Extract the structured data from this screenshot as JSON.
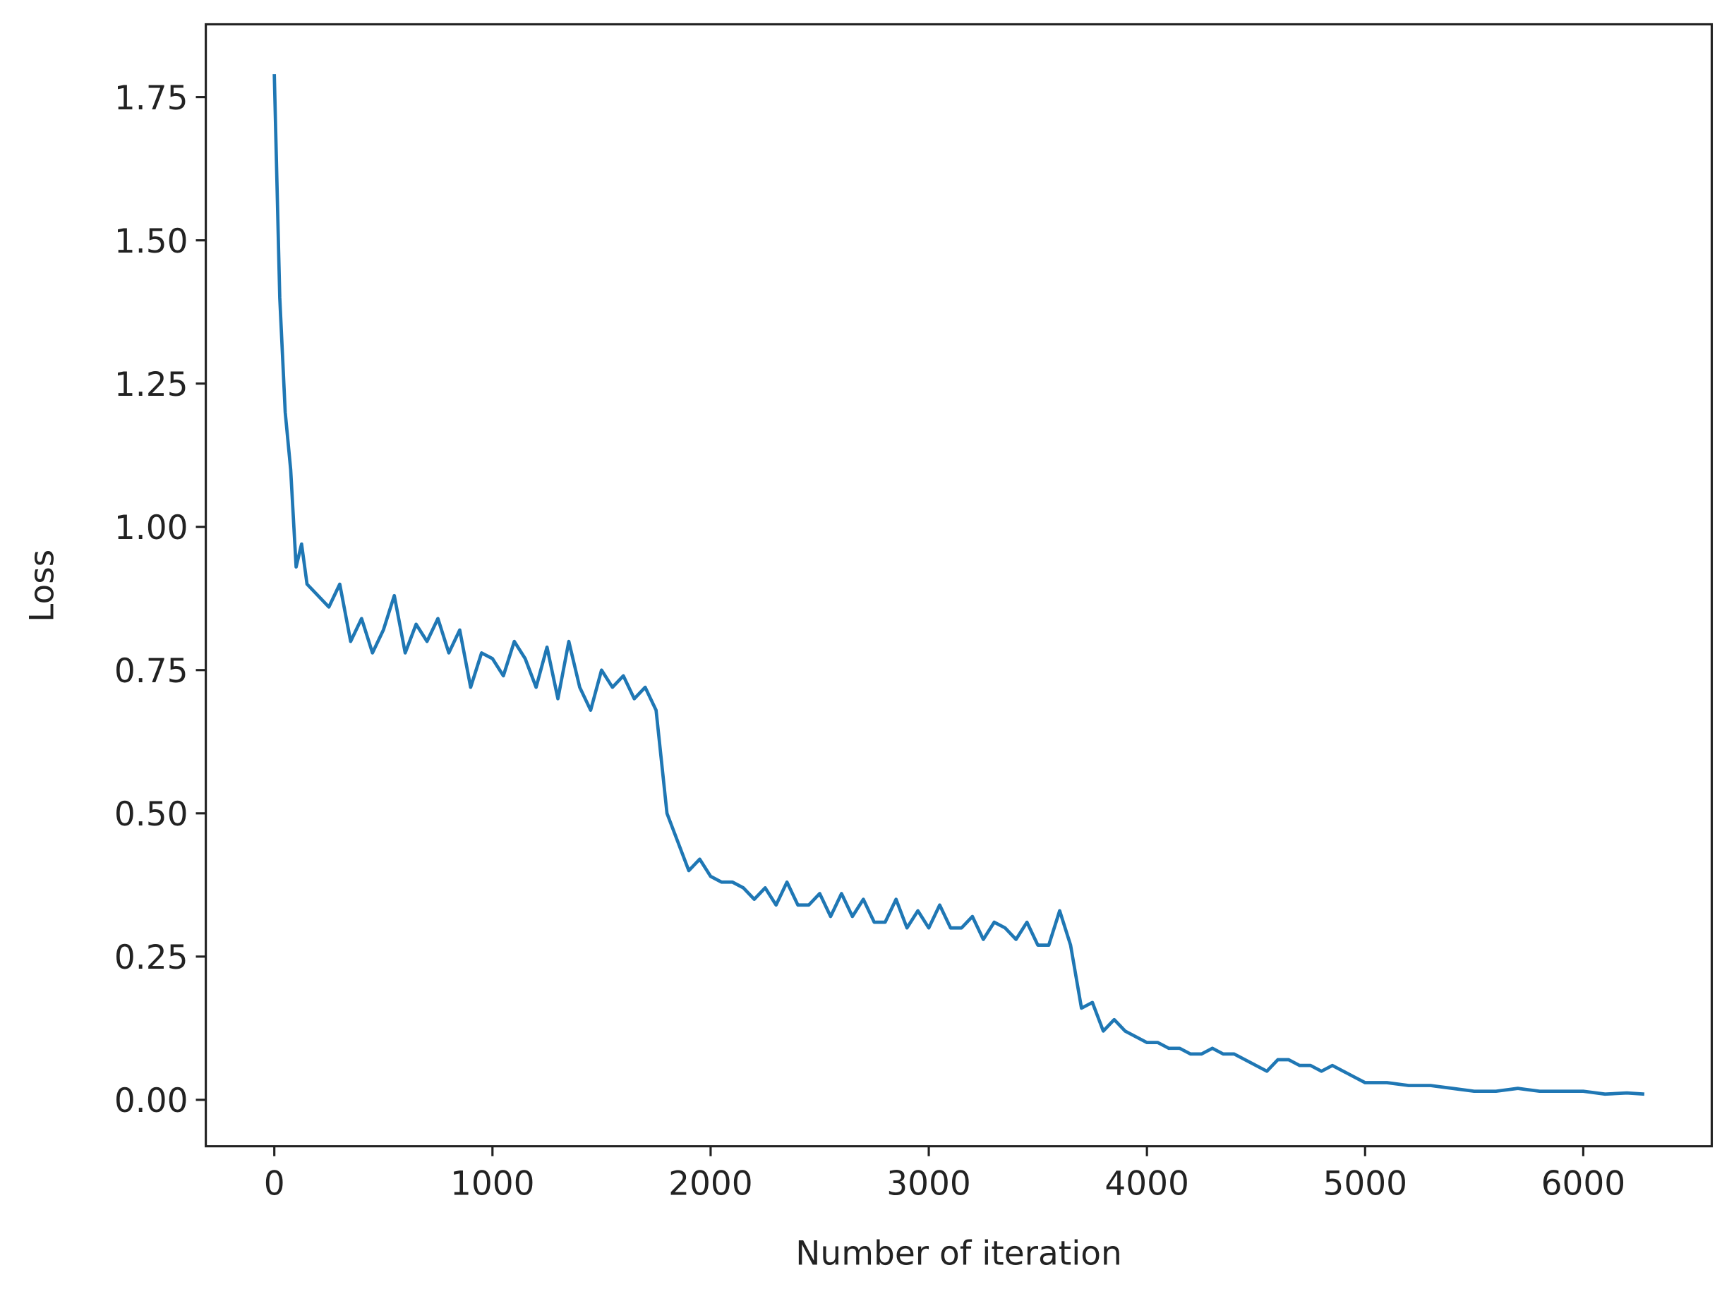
{
  "chart_data": {
    "type": "line",
    "xlabel": "Number of iteration",
    "ylabel": "Loss",
    "xlim": [
      -314,
      6589
    ],
    "ylim": [
      -0.081,
      1.877
    ],
    "xticks": [
      0,
      1000,
      2000,
      3000,
      4000,
      5000,
      6000
    ],
    "yticks": [
      {
        "value": 0,
        "label": "0.00"
      },
      {
        "value": 0.25,
        "label": "0.25"
      },
      {
        "value": 0.5,
        "label": "0.50"
      },
      {
        "value": 0.75,
        "label": "0.75"
      },
      {
        "value": 1.0,
        "label": "1.00"
      },
      {
        "value": 1.25,
        "label": "1.25"
      },
      {
        "value": 1.5,
        "label": "1.50"
      },
      {
        "value": 1.75,
        "label": "1.75"
      }
    ],
    "grid": false,
    "series": [
      {
        "color": "#1f77b4",
        "x": [
          0,
          25,
          50,
          75,
          100,
          125,
          150,
          200,
          250,
          300,
          350,
          400,
          450,
          500,
          550,
          600,
          650,
          700,
          750,
          800,
          850,
          900,
          950,
          1000,
          1050,
          1100,
          1150,
          1200,
          1250,
          1300,
          1350,
          1400,
          1450,
          1500,
          1550,
          1600,
          1650,
          1700,
          1750,
          1800,
          1850,
          1900,
          1950,
          2000,
          2050,
          2100,
          2150,
          2200,
          2250,
          2300,
          2350,
          2400,
          2450,
          2500,
          2550,
          2600,
          2650,
          2700,
          2750,
          2800,
          2850,
          2900,
          2950,
          3000,
          3050,
          3100,
          3150,
          3200,
          3250,
          3300,
          3350,
          3400,
          3450,
          3500,
          3550,
          3600,
          3650,
          3700,
          3750,
          3800,
          3850,
          3900,
          3950,
          4000,
          4050,
          4100,
          4150,
          4200,
          4250,
          4300,
          4350,
          4400,
          4450,
          4500,
          4550,
          4600,
          4650,
          4700,
          4750,
          4800,
          4850,
          4900,
          4950,
          5000,
          5100,
          5200,
          5300,
          5400,
          5500,
          5600,
          5700,
          5800,
          5900,
          6000,
          6100,
          6200,
          6280
        ],
        "values": [
          1.79,
          1.4,
          1.2,
          1.1,
          0.93,
          0.97,
          0.9,
          0.88,
          0.86,
          0.9,
          0.8,
          0.84,
          0.78,
          0.82,
          0.88,
          0.78,
          0.83,
          0.8,
          0.84,
          0.78,
          0.82,
          0.72,
          0.78,
          0.77,
          0.74,
          0.8,
          0.77,
          0.72,
          0.79,
          0.7,
          0.8,
          0.72,
          0.68,
          0.75,
          0.72,
          0.74,
          0.7,
          0.72,
          0.68,
          0.5,
          0.45,
          0.4,
          0.42,
          0.39,
          0.38,
          0.38,
          0.37,
          0.35,
          0.37,
          0.34,
          0.38,
          0.34,
          0.34,
          0.36,
          0.32,
          0.36,
          0.32,
          0.35,
          0.31,
          0.31,
          0.35,
          0.3,
          0.33,
          0.3,
          0.34,
          0.3,
          0.3,
          0.32,
          0.28,
          0.31,
          0.3,
          0.28,
          0.31,
          0.27,
          0.27,
          0.33,
          0.27,
          0.16,
          0.17,
          0.12,
          0.14,
          0.12,
          0.11,
          0.1,
          0.1,
          0.09,
          0.09,
          0.08,
          0.08,
          0.09,
          0.08,
          0.08,
          0.07,
          0.06,
          0.05,
          0.07,
          0.07,
          0.06,
          0.06,
          0.05,
          0.06,
          0.05,
          0.04,
          0.03,
          0.03,
          0.025,
          0.025,
          0.02,
          0.015,
          0.015,
          0.02,
          0.015,
          0.015,
          0.015,
          0.01,
          0.012,
          0.01
        ]
      }
    ]
  }
}
